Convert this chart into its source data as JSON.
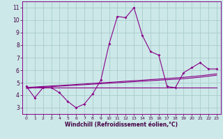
{
  "xlabel": "Windchill (Refroidissement éolien,°C)",
  "bg_color": "#cce8e8",
  "grid_color": "#aacccc",
  "line_color": "#880088",
  "x_hours": [
    0,
    1,
    2,
    3,
    4,
    5,
    6,
    7,
    8,
    9,
    10,
    11,
    12,
    13,
    14,
    15,
    16,
    17,
    18,
    19,
    20,
    21,
    22,
    23
  ],
  "series_main": [
    4.7,
    3.8,
    4.6,
    4.6,
    4.2,
    3.5,
    3.0,
    3.3,
    4.1,
    5.2,
    8.1,
    10.3,
    10.2,
    11.0,
    8.8,
    7.5,
    7.2,
    4.7,
    4.6,
    5.8,
    6.2,
    6.6,
    6.1,
    6.1
  ],
  "series_reg1": [
    4.55,
    4.6,
    4.65,
    4.68,
    4.72,
    4.76,
    4.8,
    4.84,
    4.88,
    4.92,
    4.96,
    5.0,
    5.04,
    5.08,
    5.12,
    5.16,
    5.2,
    5.24,
    5.28,
    5.32,
    5.38,
    5.44,
    5.52,
    5.6
  ],
  "series_reg2": [
    4.62,
    4.66,
    4.7,
    4.74,
    4.78,
    4.82,
    4.86,
    4.9,
    4.95,
    4.99,
    5.03,
    5.07,
    5.12,
    5.16,
    5.2,
    5.25,
    5.29,
    5.34,
    5.38,
    5.43,
    5.49,
    5.55,
    5.63,
    5.71
  ],
  "series_flat": [
    4.6,
    4.6,
    4.6,
    4.6,
    4.6,
    4.6,
    4.6,
    4.6,
    4.6,
    4.6,
    4.6,
    4.6,
    4.6,
    4.6,
    4.6,
    4.6,
    4.6,
    4.6,
    4.6,
    4.6,
    4.6,
    4.6,
    4.6,
    4.6
  ],
  "ylim": [
    2.5,
    11.5
  ],
  "xlim": [
    -0.5,
    23.5
  ],
  "yticks": [
    3,
    4,
    5,
    6,
    7,
    8,
    9,
    10,
    11
  ],
  "xticks": [
    0,
    1,
    2,
    3,
    4,
    5,
    6,
    7,
    8,
    9,
    10,
    11,
    12,
    13,
    14,
    15,
    16,
    17,
    18,
    19,
    20,
    21,
    22,
    23
  ]
}
